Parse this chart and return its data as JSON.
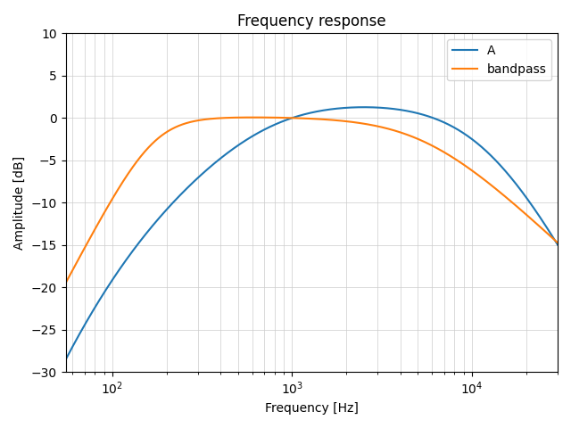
{
  "title": "Frequency response",
  "xlabel": "Frequency [Hz]",
  "ylabel": "Amplitude [dB]",
  "xlim": [
    55,
    30000
  ],
  "ylim": [
    -30,
    10
  ],
  "yticks": [
    -30,
    -25,
    -20,
    -15,
    -10,
    -5,
    0,
    5,
    10
  ],
  "line_A_color": "#1f77b4",
  "line_bp_color": "#ff7f0e",
  "legend_labels": [
    "A",
    "bandpass"
  ],
  "grid": true,
  "f_min": 55,
  "f_max": 30000,
  "n_points": 2000,
  "figsize": [
    6.4,
    4.8
  ],
  "dpi": 100
}
